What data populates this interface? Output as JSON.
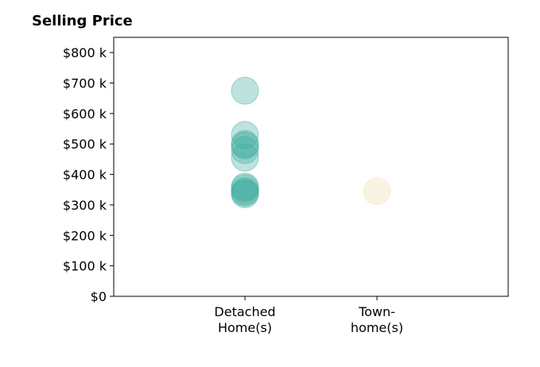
{
  "chart_data": {
    "type": "scatter",
    "title": "Selling Price",
    "xlabel": "",
    "ylabel": "",
    "categories": [
      "Detached\nHome(s)",
      "Town-\nhome(s)"
    ],
    "y_ticks": [
      "$0",
      "$100 k",
      "$200 k",
      "$300 k",
      "$400 k",
      "$500 k",
      "$600 k",
      "$700 k",
      "$800 k"
    ],
    "ylim": [
      0,
      850000
    ],
    "grid": false,
    "series": [
      {
        "category_index": 0,
        "color": "#3aa99b",
        "values": [
          675000,
          530000,
          500000,
          495000,
          480000,
          455000,
          360000,
          355000,
          345000,
          340000,
          335000
        ]
      },
      {
        "category_index": 1,
        "color": "#f3dca8",
        "values": [
          345000
        ]
      }
    ]
  }
}
